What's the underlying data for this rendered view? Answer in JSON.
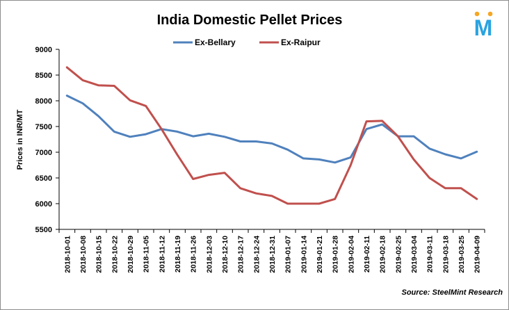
{
  "chart_data": {
    "type": "line",
    "title": "India Domestic Pellet Prices",
    "ylabel": "Prices in INR/MT",
    "xlabel": "",
    "ylim": [
      5500,
      9000
    ],
    "yticks": [
      5500,
      6000,
      6500,
      7000,
      7500,
      8000,
      8500,
      9000
    ],
    "legend_position": "top",
    "grid": false,
    "categories": [
      "2018-10-01",
      "2018-10-08",
      "2018-10-15",
      "2018-10-22",
      "2018-10-29",
      "2018-11-05",
      "2018-11-12",
      "2018-11-19",
      "2018-11-26",
      "2018-12-03",
      "2018-12-10",
      "2018-12-17",
      "2018-12-24",
      "2018-12-31",
      "2019-01-07",
      "2019-01-14",
      "2019-01-21",
      "2019-01-28",
      "2019-02-04",
      "2019-02-11",
      "2019-02-18",
      "2019-02-25",
      "2019-03-04",
      "2019-03-11",
      "2019-03-18",
      "2019-03-25",
      "2019-04-09"
    ],
    "series": [
      {
        "name": "Ex-Bellary",
        "color": "#4f81bd",
        "values": [
          8100,
          7950,
          7700,
          7400,
          7300,
          7350,
          7450,
          7400,
          7310,
          7360,
          7300,
          7210,
          7210,
          7170,
          7050,
          6880,
          6860,
          6800,
          6900,
          7450,
          7540,
          7310,
          7310,
          7070,
          6960,
          6880,
          7010
        ]
      },
      {
        "name": "Ex-Raipur",
        "color": "#c0504d",
        "values": [
          8650,
          8400,
          8300,
          8290,
          8010,
          7900,
          7450,
          6950,
          6480,
          6560,
          6600,
          6300,
          6200,
          6150,
          6000,
          6000,
          6000,
          6090,
          6750,
          7600,
          7610,
          7310,
          6860,
          6500,
          6300,
          6300,
          6090
        ]
      }
    ],
    "source": "Source: SteelMint Research"
  },
  "logo": {
    "icon": "steelmint-m-logo",
    "letter": "M",
    "primary_color": "#29a3e0",
    "accent_color": "#f5a623"
  }
}
